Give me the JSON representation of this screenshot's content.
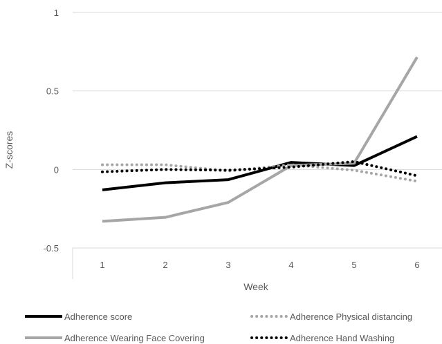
{
  "chart_data": {
    "type": "line",
    "title": "",
    "xlabel": "Week",
    "ylabel": "Z-scores",
    "x": [
      1,
      2,
      3,
      4,
      5,
      6
    ],
    "x_tick_labels": [
      "1",
      "2",
      "3",
      "4",
      "5",
      "6"
    ],
    "ylim": [
      -0.5,
      1
    ],
    "y_ticks": [
      -0.5,
      0,
      0.5,
      1
    ],
    "y_tick_labels": [
      "-0.5",
      "0",
      "0.5",
      "1"
    ],
    "grid": true,
    "legend_position": "bottom",
    "series": [
      {
        "name": "Adherence score",
        "values": [
          -0.13,
          -0.085,
          -0.065,
          0.045,
          0.025,
          0.21
        ],
        "color": "#000000",
        "style": "solid",
        "width": 4
      },
      {
        "name": "Adherence Physical distancing",
        "values": [
          0.03,
          0.03,
          -0.01,
          0.03,
          -0.005,
          -0.075
        ],
        "color": "#a6a6a6",
        "style": "dotted",
        "width": 4
      },
      {
        "name": "Adherence Wearing Face Covering",
        "values": [
          -0.33,
          -0.305,
          -0.21,
          0.025,
          0.04,
          0.715
        ],
        "color": "#a6a6a6",
        "style": "solid",
        "width": 4
      },
      {
        "name": "Adherence Hand Washing",
        "values": [
          -0.015,
          0.0,
          -0.005,
          0.015,
          0.05,
          -0.04
        ],
        "color": "#000000",
        "style": "dotted",
        "width": 4
      }
    ]
  }
}
